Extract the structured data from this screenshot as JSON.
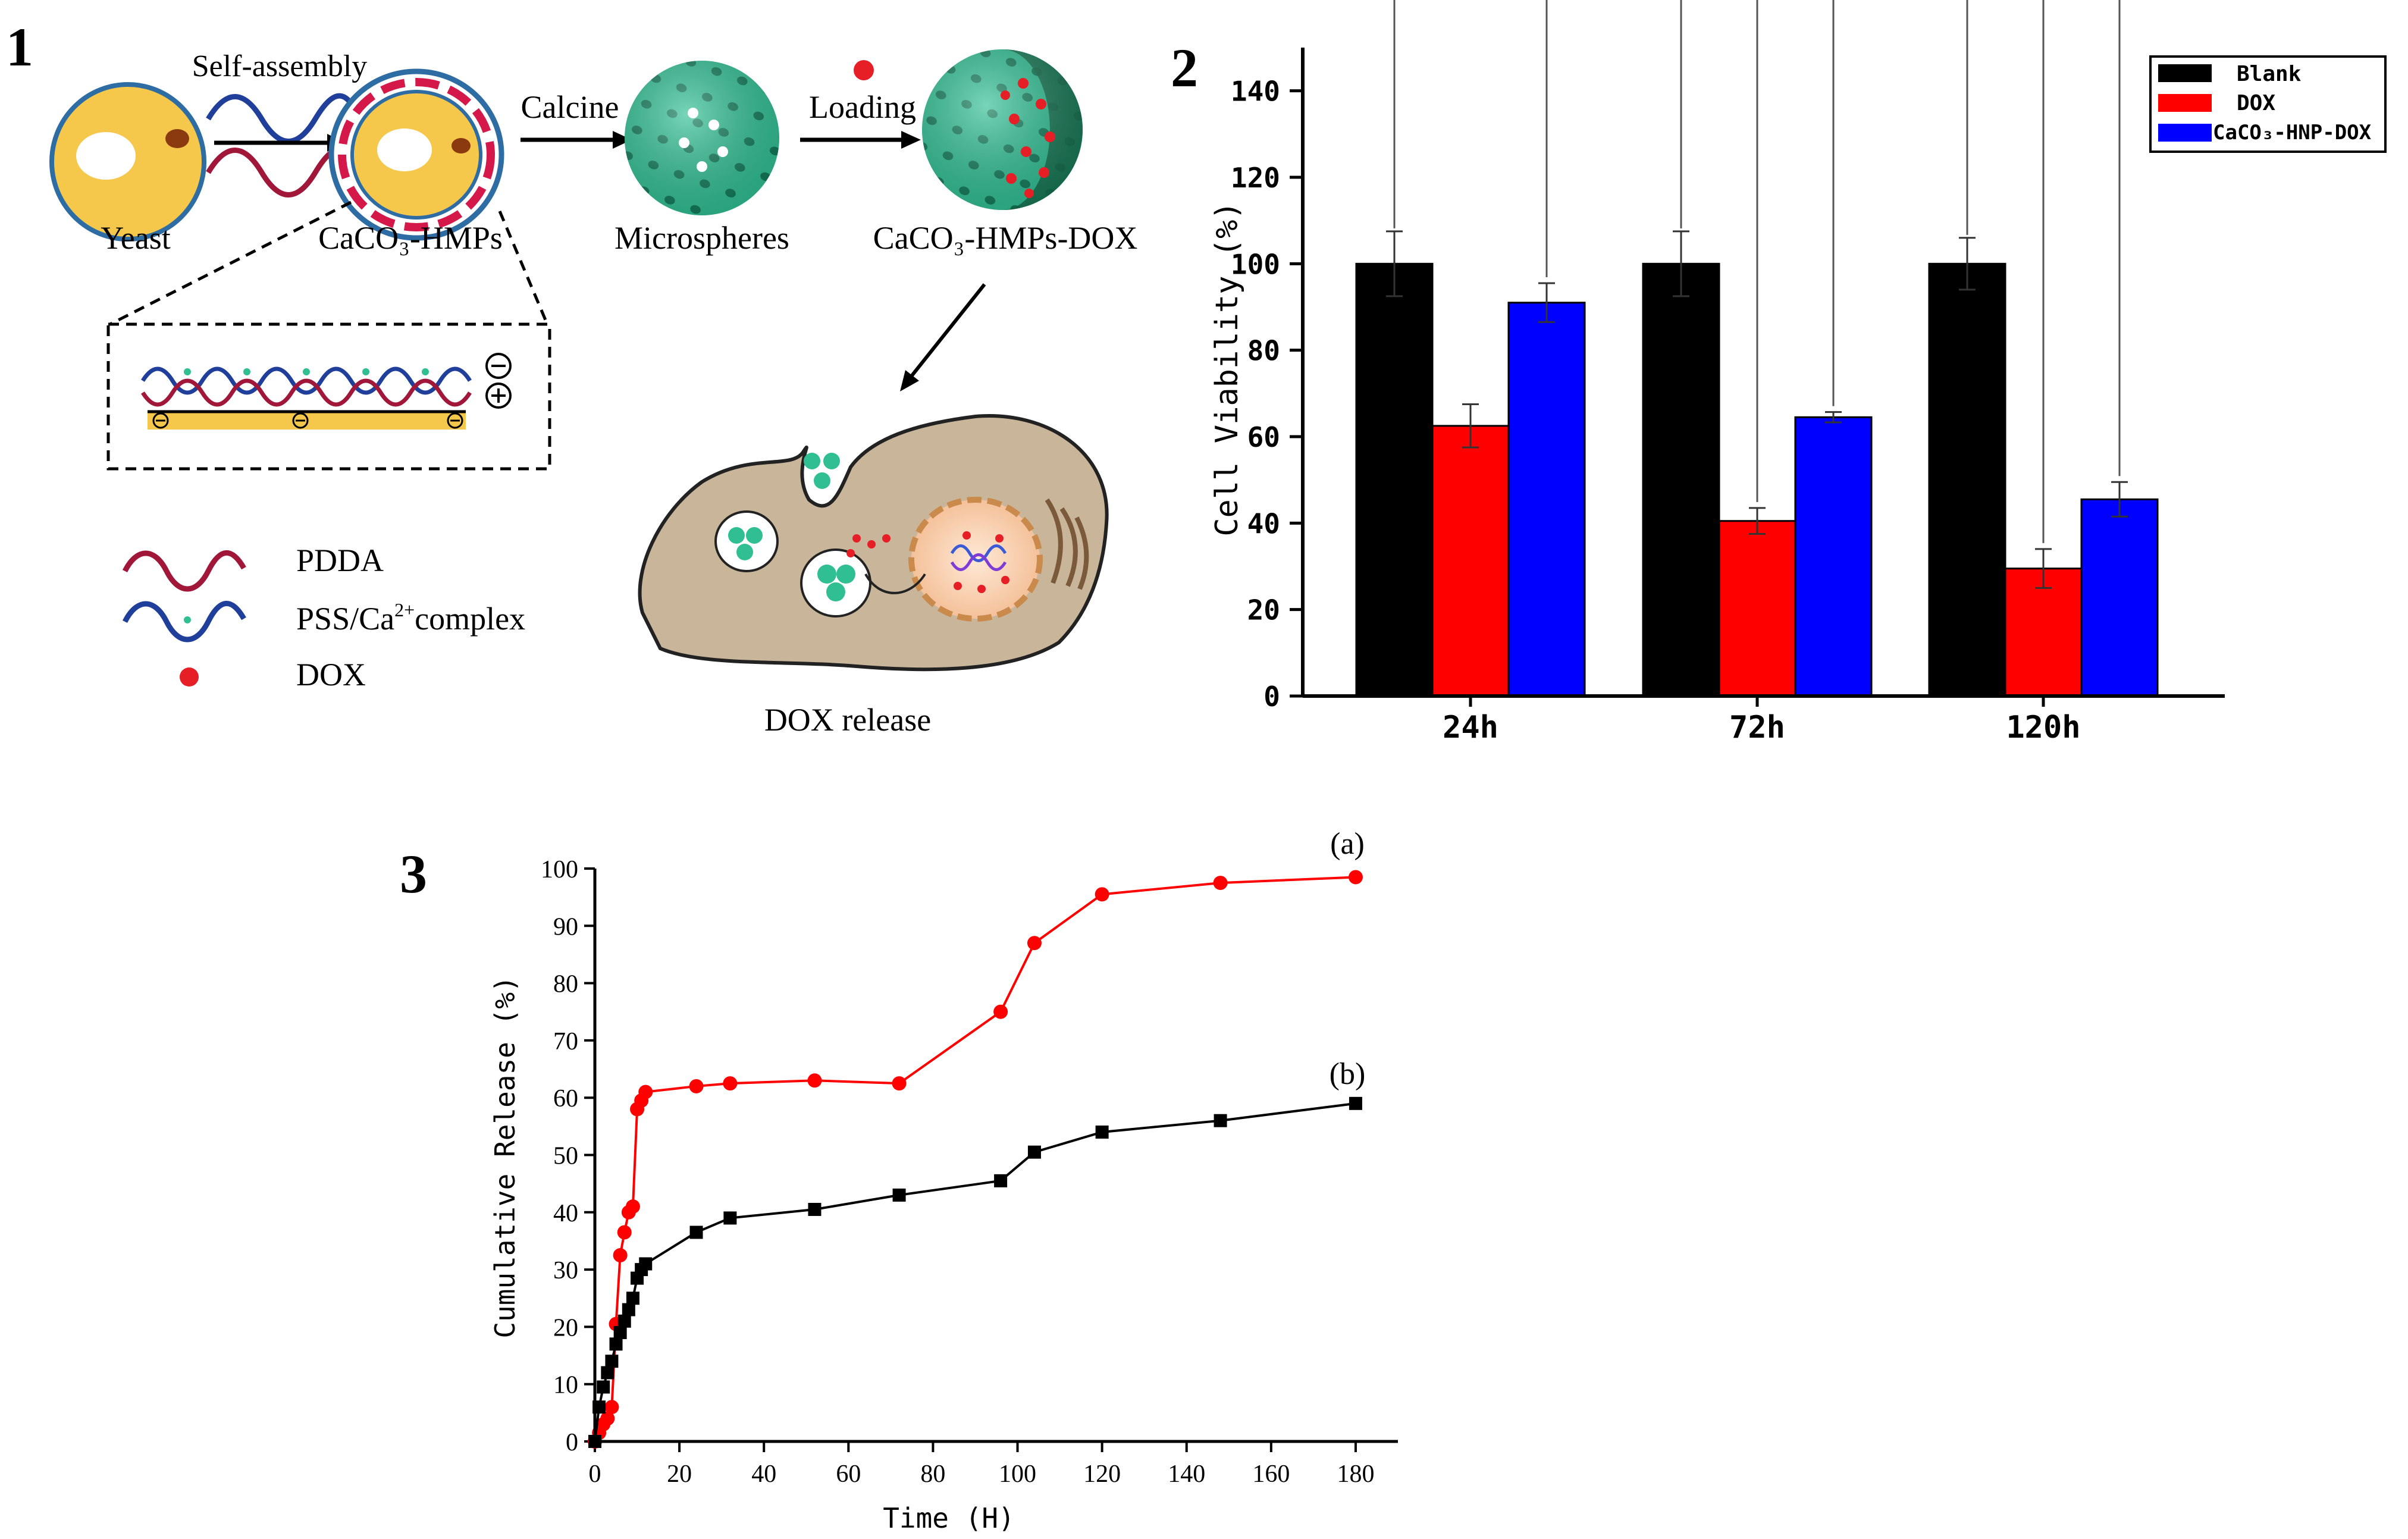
{
  "panel_labels": [
    "1",
    "2",
    "3"
  ],
  "scheme": {
    "labels": {
      "yeast": "Yeast",
      "hmps": "CaCO₃-HMPs",
      "self_assembly": "Self-assembly",
      "calcine": "Calcine",
      "microspheres": "Microspheres",
      "loading": "Loading",
      "hmps_dox": "CaCO₃-HMPs-DOX",
      "dox_release": "DOX release"
    },
    "legend": [
      {
        "icon": "pdda-wave-icon",
        "label": "PDDA"
      },
      {
        "icon": "pss-ca-wave-icon",
        "label_main": "PSS/Ca",
        "label_sup": "2+",
        "label_tail": "complex"
      },
      {
        "icon": "dox-dot-icon",
        "label": "DOX"
      }
    ],
    "colors": {
      "yeast": "#f5c84c",
      "microsphere": "#2fbf93",
      "pdda": "#a0173a",
      "pss": "#1f3f9a",
      "dox": "#e61e25",
      "cell": "#c9b69a"
    }
  },
  "chart_data": [
    {
      "type": "bar",
      "categories": [
        "24h",
        "72h",
        "120h"
      ],
      "series": [
        {
          "name": "Blank",
          "color": "#000000",
          "values": [
            100,
            100,
            100
          ],
          "errors": [
            7.5,
            7.5,
            6
          ]
        },
        {
          "name": "DOX",
          "color": "#ff0000",
          "values": [
            62.5,
            40.5,
            29.5
          ],
          "errors": [
            5,
            3,
            4.5
          ]
        },
        {
          "name": "CaCO₃-HNP-DOX",
          "color": "#0000ff",
          "values": [
            91,
            64.5,
            45.5
          ],
          "errors": [
            4.5,
            1.2,
            4
          ]
        }
      ],
      "ylabel": "Cell Viability (%)",
      "ylim": [
        0,
        150
      ],
      "yticks": [
        0,
        20,
        40,
        60,
        80,
        100,
        120,
        140
      ],
      "legend_position": "top-right",
      "significance": [
        {
          "group": "24h",
          "from": "Blank",
          "to": "CaCO₃-HNP-DOX",
          "label": "***"
        },
        {
          "group": "72h",
          "from": "Blank",
          "to": "DOX",
          "label": "***"
        },
        {
          "group": "72h",
          "from": "Blank",
          "to": "CaCO₃-HNP-DOX",
          "label": "*"
        },
        {
          "group": "120h",
          "from": "Blank",
          "to": "DOX",
          "label": ""
        },
        {
          "group": "120h",
          "from": "Blank",
          "to": "CaCO₃-HNP-DOX",
          "label": "***"
        }
      ]
    },
    {
      "type": "line",
      "xlabel": "Time (H)",
      "ylabel": "Cumulative Release (%)",
      "xlim": [
        0,
        190
      ],
      "ylim": [
        0,
        100
      ],
      "xticks": [
        0,
        20,
        40,
        60,
        80,
        100,
        120,
        140,
        160,
        180
      ],
      "yticks": [
        0,
        10,
        20,
        30,
        40,
        50,
        60,
        70,
        80,
        90,
        100
      ],
      "series": [
        {
          "name": "(a)",
          "color": "#ff0000",
          "marker": "circle",
          "x": [
            0,
            1,
            2,
            3,
            4,
            5,
            6,
            7,
            8,
            9,
            10,
            11,
            12,
            24,
            32,
            52,
            72,
            96,
            104,
            120,
            148,
            180
          ],
          "y": [
            0,
            1.5,
            3,
            4,
            6,
            20.5,
            32.5,
            36.5,
            40,
            41,
            58,
            59.5,
            61,
            62,
            62.5,
            63,
            62.5,
            75,
            87,
            95.5,
            97.5,
            98.5
          ]
        },
        {
          "name": "(b)",
          "color": "#000000",
          "marker": "square",
          "x": [
            0,
            1,
            2,
            3,
            4,
            5,
            6,
            7,
            8,
            9,
            10,
            11,
            12,
            24,
            32,
            52,
            72,
            96,
            104,
            120,
            148,
            180
          ],
          "y": [
            0,
            6,
            9.5,
            12,
            14,
            17,
            19,
            21,
            23,
            25,
            28.5,
            30,
            31,
            36.5,
            39,
            40.5,
            43,
            45.5,
            50.5,
            54,
            56,
            59
          ]
        }
      ]
    }
  ]
}
